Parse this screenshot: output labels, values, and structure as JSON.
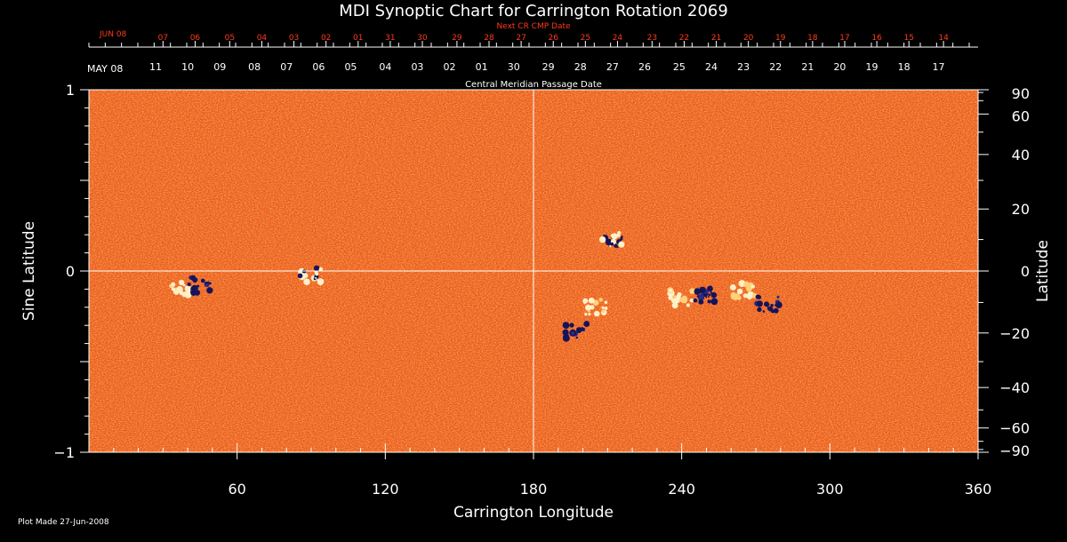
{
  "chart_data": {
    "type": "heatmap",
    "title": "MDI Synoptic Chart for Carrington Rotation 2069",
    "xlabel": "Carrington Longitude",
    "ylabel_left": "Sine Latitude",
    "ylabel_right": "Latitude",
    "xlim": [
      0,
      360
    ],
    "ylim": [
      -1,
      1
    ],
    "x_ticks": [
      60,
      120,
      180,
      240,
      300,
      360
    ],
    "y_ticks_left": [
      {
        "value": 1,
        "label": "1"
      },
      {
        "value": 0,
        "label": "0"
      },
      {
        "value": -1,
        "label": "−1"
      }
    ],
    "y_ticks_right": [
      {
        "deg": 90,
        "label": "90"
      },
      {
        "deg": 60,
        "label": "60"
      },
      {
        "deg": 40,
        "label": "40"
      },
      {
        "deg": 20,
        "label": "20"
      },
      {
        "deg": 0,
        "label": "0"
      },
      {
        "deg": -20,
        "label": "−20"
      },
      {
        "deg": -40,
        "label": "−40"
      },
      {
        "deg": -60,
        "label": "−60"
      },
      {
        "deg": -90,
        "label": "−90"
      }
    ],
    "cmp_date_axis_label": "Central Meridian Passage Date",
    "cmp_start_label": "MAY 08",
    "cmp_dates": [
      {
        "lon": 27,
        "label": "11"
      },
      {
        "lon": 40,
        "label": "10"
      },
      {
        "lon": 53,
        "label": "09"
      },
      {
        "lon": 67,
        "label": "08"
      },
      {
        "lon": 80,
        "label": "07"
      },
      {
        "lon": 93,
        "label": "06"
      },
      {
        "lon": 106,
        "label": "05"
      },
      {
        "lon": 120,
        "label": "04"
      },
      {
        "lon": 133,
        "label": "03"
      },
      {
        "lon": 146,
        "label": "02"
      },
      {
        "lon": 159,
        "label": "01"
      },
      {
        "lon": 172,
        "label": "30"
      },
      {
        "lon": 186,
        "label": "29"
      },
      {
        "lon": 199,
        "label": "28"
      },
      {
        "lon": 212,
        "label": "27"
      },
      {
        "lon": 225,
        "label": "26"
      },
      {
        "lon": 239,
        "label": "25"
      },
      {
        "lon": 252,
        "label": "24"
      },
      {
        "lon": 265,
        "label": "23"
      },
      {
        "lon": 278,
        "label": "22"
      },
      {
        "lon": 291,
        "label": "21"
      },
      {
        "lon": 304,
        "label": "20"
      },
      {
        "lon": 317,
        "label": "19"
      },
      {
        "lon": 330,
        "label": "18"
      },
      {
        "lon": 344,
        "label": "17"
      }
    ],
    "next_cr_label": "Next CR CMP Date",
    "next_cr_start_label": "JUN 08",
    "next_cr_dates": [
      {
        "lon": 30,
        "label": "07"
      },
      {
        "lon": 43,
        "label": "06"
      },
      {
        "lon": 57,
        "label": "05"
      },
      {
        "lon": 70,
        "label": "04"
      },
      {
        "lon": 83,
        "label": "03"
      },
      {
        "lon": 96,
        "label": "02"
      },
      {
        "lon": 109,
        "label": "01"
      },
      {
        "lon": 122,
        "label": "31"
      },
      {
        "lon": 135,
        "label": "30"
      },
      {
        "lon": 149,
        "label": "29"
      },
      {
        "lon": 162,
        "label": "28"
      },
      {
        "lon": 175,
        "label": "27"
      },
      {
        "lon": 188,
        "label": "26"
      },
      {
        "lon": 201,
        "label": "25"
      },
      {
        "lon": 214,
        "label": "24"
      },
      {
        "lon": 228,
        "label": "23"
      },
      {
        "lon": 241,
        "label": "22"
      },
      {
        "lon": 254,
        "label": "21"
      },
      {
        "lon": 267,
        "label": "20"
      },
      {
        "lon": 280,
        "label": "19"
      },
      {
        "lon": 293,
        "label": "18"
      },
      {
        "lon": 306,
        "label": "17"
      },
      {
        "lon": 319,
        "label": "16"
      },
      {
        "lon": 332,
        "label": "15"
      },
      {
        "lon": 346,
        "label": "14"
      }
    ],
    "grid_lines": {
      "longitude": 180,
      "sine_latitude": 0
    },
    "active_regions": [
      {
        "lon": 212,
        "sinlat": 0.17,
        "polarity": "mixed"
      },
      {
        "lon": 197,
        "sinlat": -0.33,
        "polarity": "negative"
      },
      {
        "lon": 205,
        "sinlat": -0.2,
        "polarity": "positive"
      },
      {
        "lon": 240,
        "sinlat": -0.15,
        "polarity": "positive"
      },
      {
        "lon": 250,
        "sinlat": -0.13,
        "polarity": "negative"
      },
      {
        "lon": 265,
        "sinlat": -0.11,
        "polarity": "positive"
      },
      {
        "lon": 275,
        "sinlat": -0.18,
        "polarity": "negative"
      },
      {
        "lon": 37,
        "sinlat": -0.09,
        "polarity": "positive"
      },
      {
        "lon": 45,
        "sinlat": -0.08,
        "polarity": "negative"
      },
      {
        "lon": 90,
        "sinlat": -0.02,
        "polarity": "mixed"
      }
    ],
    "colors": {
      "background": "#000000",
      "field_base": "#e8551c",
      "positive": "#fff0c8",
      "negative": "#14145a",
      "axis": "#ffffff",
      "next_cr": "#ff3a1a"
    }
  },
  "footer": {
    "plot_made": "Plot Made 27-Jun-2008"
  }
}
